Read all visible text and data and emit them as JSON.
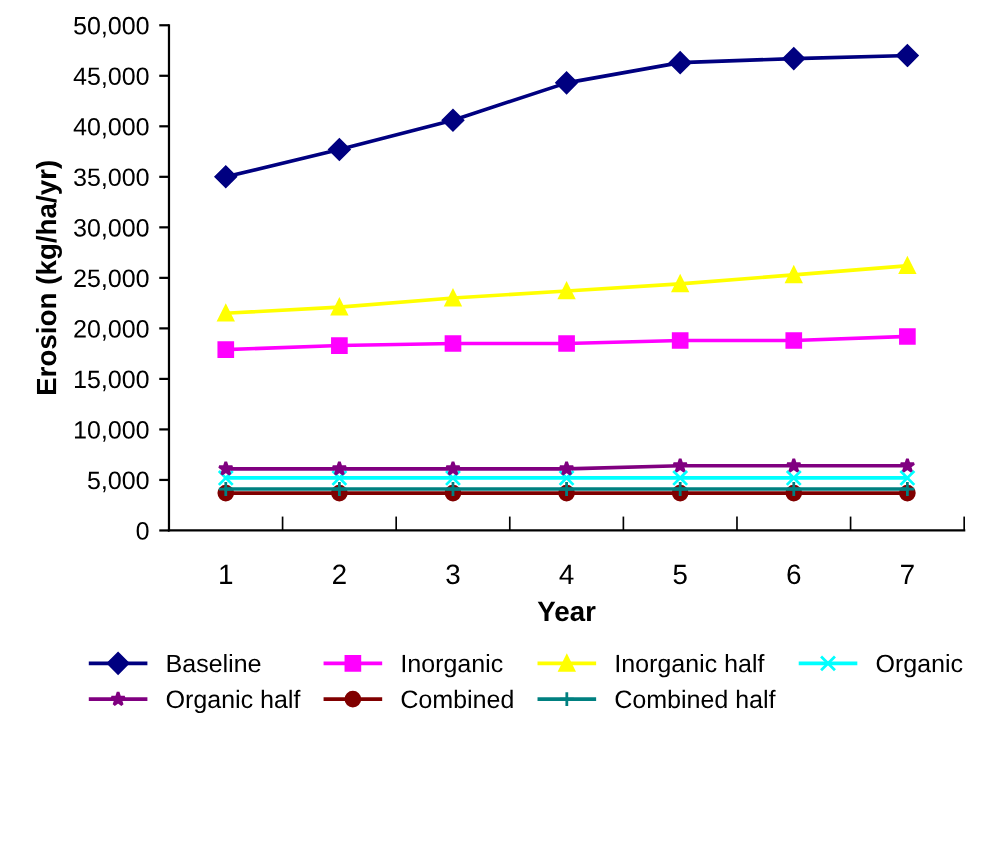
{
  "chart_data": {
    "type": "line",
    "xlabel": "Year",
    "ylabel": "Erosion (kg/ha/yr)",
    "categories": [
      "1",
      "2",
      "3",
      "4",
      "5",
      "6",
      "7"
    ],
    "ylim": [
      0,
      50000
    ],
    "yticks": [
      {
        "value": 0,
        "label": "0"
      },
      {
        "value": 5000,
        "label": "5,000"
      },
      {
        "value": 10000,
        "label": "10,000"
      },
      {
        "value": 15000,
        "label": "15,000"
      },
      {
        "value": 20000,
        "label": "20,000"
      },
      {
        "value": 25000,
        "label": "25,000"
      },
      {
        "value": 30000,
        "label": "30,000"
      },
      {
        "value": 35000,
        "label": "35,000"
      },
      {
        "value": 40000,
        "label": "40,000"
      },
      {
        "value": 45000,
        "label": "45,000"
      },
      {
        "value": 50000,
        "label": "50,000"
      }
    ],
    "grid": false,
    "legend": "bottom",
    "line_style": "solid",
    "series": [
      {
        "name": "Baseline",
        "color": "#000080",
        "marker": "diamond",
        "values": [
          35000,
          37700,
          40600,
          44300,
          46300,
          46700,
          47000
        ]
      },
      {
        "name": "Inorganic",
        "color": "#ff00ff",
        "marker": "square",
        "values": [
          17900,
          18300,
          18500,
          18500,
          18800,
          18800,
          19200
        ]
      },
      {
        "name": "Inorganic half",
        "color": "#ffff00",
        "marker": "triangle",
        "values": [
          21500,
          22100,
          23000,
          23700,
          24400,
          25300,
          26200
        ]
      },
      {
        "name": "Organic",
        "color": "#00ffff",
        "marker": "cross",
        "values": [
          5200,
          5200,
          5200,
          5200,
          5200,
          5200,
          5200
        ]
      },
      {
        "name": "Organic half",
        "color": "#800080",
        "marker": "star",
        "values": [
          6100,
          6100,
          6100,
          6100,
          6400,
          6400,
          6400
        ]
      },
      {
        "name": "Combined",
        "color": "#800000",
        "marker": "circle",
        "values": [
          3700,
          3700,
          3700,
          3700,
          3700,
          3700,
          3700
        ]
      },
      {
        "name": "Combined half",
        "color": "#008080",
        "marker": "plus",
        "values": [
          4100,
          4100,
          4100,
          4100,
          4100,
          4100,
          4100
        ]
      }
    ]
  }
}
